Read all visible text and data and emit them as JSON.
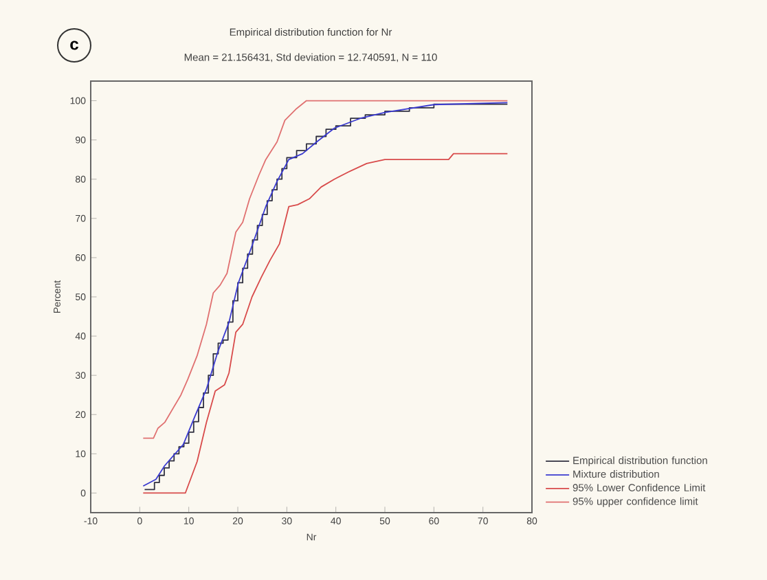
{
  "chart_data": {
    "type": "line",
    "title": "Empirical distribution function for Nr",
    "subtitle": "Mean = 21.156431, Std deviation = 12.740591, N = 110",
    "xlabel": "Nr",
    "ylabel": "Percent",
    "annotations": [
      "c"
    ],
    "xlim": [
      -10,
      80
    ],
    "ylim": [
      -5,
      105
    ],
    "xticks": [
      -10,
      0,
      10,
      20,
      30,
      40,
      50,
      60,
      70,
      80
    ],
    "yticks": [
      0,
      10,
      20,
      30,
      40,
      50,
      60,
      70,
      80,
      90,
      100
    ],
    "grid": false,
    "legend": "bottom right",
    "marker": "none",
    "line_style": "solid",
    "series": [
      {
        "name": "Empirical distribution function",
        "type": "step",
        "color": "#303040",
        "x": [
          1,
          3,
          4,
          5,
          6,
          7,
          8,
          9,
          10,
          11,
          12,
          13,
          14,
          15,
          16,
          17,
          18,
          19,
          20,
          21,
          22,
          23,
          24,
          25,
          26,
          27,
          28,
          29,
          30,
          32,
          34,
          36,
          38,
          40,
          43,
          46,
          50,
          55,
          60,
          65,
          70,
          75
        ],
        "values": [
          0.9,
          2.7,
          4.5,
          6.4,
          8.2,
          10,
          11.8,
          12.7,
          15.5,
          18.2,
          21.8,
          25.5,
          30,
          35.5,
          38.2,
          39,
          43.6,
          49,
          53.6,
          57.3,
          60.9,
          64.5,
          68.2,
          71,
          74.5,
          77.3,
          80,
          82.7,
          85.5,
          87.3,
          89,
          90.9,
          92.7,
          93.6,
          95.5,
          96.4,
          97.3,
          98.2,
          99.1,
          99.1,
          99.1,
          99.1
        ]
      },
      {
        "name": "Mixture distribution",
        "color": "#3a3ad0",
        "x": [
          0.7,
          3.3,
          5.1,
          8.9,
          11.2,
          13.6,
          15.9,
          18.2,
          20.1,
          22.9,
          25.7,
          28,
          30.4,
          33.2,
          36,
          39.7,
          45,
          50,
          60,
          75
        ],
        "values": [
          1.8,
          3.5,
          7,
          12.4,
          19.4,
          26.5,
          35.9,
          43.5,
          53.5,
          63,
          73,
          79.4,
          85,
          86.5,
          89.4,
          93,
          95.5,
          97,
          99,
          99.5
        ]
      },
      {
        "name": "95% Lower Confidence Limit",
        "color": "#d84a4a",
        "x": [
          0.7,
          9.3,
          11.7,
          13.6,
          15.4,
          17.3,
          18.2,
          19.6,
          21,
          22.9,
          24.8,
          26.6,
          28.5,
          30.4,
          32.2,
          34.6,
          37,
          39.7,
          42.5,
          46.3,
          50,
          63,
          64,
          75
        ],
        "values": [
          0,
          0,
          8,
          18,
          26,
          27.6,
          30.6,
          41,
          43,
          50,
          55,
          59.4,
          63.5,
          73,
          73.5,
          75,
          78,
          80,
          81.8,
          84,
          85,
          85,
          86.5,
          86.5
        ]
      },
      {
        "name": "95% upper confidence limit",
        "color": "#e07070",
        "x": [
          0.7,
          2.8,
          3.7,
          5.1,
          8.4,
          9.8,
          11.7,
          13.6,
          15,
          16.4,
          17.8,
          19.6,
          21,
          22.4,
          24.3,
          25.7,
          28,
          29.6,
          32,
          34,
          75
        ],
        "values": [
          14,
          14,
          16.5,
          18,
          25,
          29,
          35,
          43,
          51,
          53,
          56,
          66.5,
          69,
          75,
          81,
          85,
          89.5,
          95,
          98,
          100,
          100
        ]
      }
    ]
  }
}
